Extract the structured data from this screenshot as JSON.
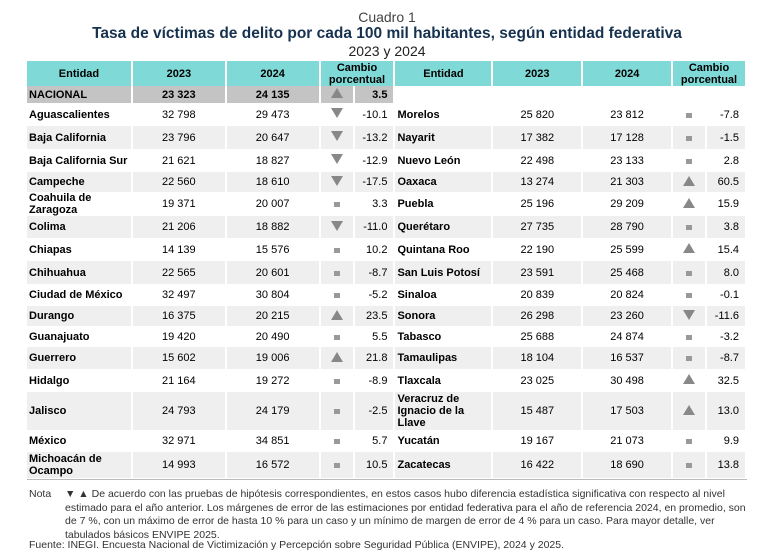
{
  "cuadro": "Cuadro 1",
  "title": "Tasa de víctimas de delito por cada 100 mil habitantes, según entidad federativa",
  "subtitle": "2023 y 2024",
  "headers": {
    "entidad": "Entidad",
    "y2023": "2023",
    "y2024": "2024",
    "cambio": "Cambio porcentual"
  },
  "nacional": {
    "name": "NACIONAL",
    "v2023": "23 323",
    "v2024": "24 135",
    "sym": "up",
    "change": "3.5"
  },
  "left": [
    {
      "name": "Aguascalientes",
      "v2023": "32 798",
      "v2024": "29 473",
      "sym": "down",
      "change": "-10.1"
    },
    {
      "name": "Baja California",
      "v2023": "23 796",
      "v2024": "20 647",
      "sym": "down",
      "change": "-13.2"
    },
    {
      "name": "Baja California Sur",
      "v2023": "21 621",
      "v2024": "18 827",
      "sym": "down",
      "change": "-12.9"
    },
    {
      "name": "Campeche",
      "v2023": "22 560",
      "v2024": "18 610",
      "sym": "down",
      "change": "-17.5"
    },
    {
      "name": "Coahuila de Zaragoza",
      "v2023": "19 371",
      "v2024": "20 007",
      "sym": "eq",
      "change": "3.3"
    },
    {
      "name": "Colima",
      "v2023": "21 206",
      "v2024": "18 882",
      "sym": "down",
      "change": "-11.0"
    },
    {
      "name": "Chiapas",
      "v2023": "14 139",
      "v2024": "15 576",
      "sym": "eq",
      "change": "10.2"
    },
    {
      "name": "Chihuahua",
      "v2023": "22 565",
      "v2024": "20 601",
      "sym": "eq",
      "change": "-8.7"
    },
    {
      "name": "Ciudad de México",
      "v2023": "32 497",
      "v2024": "30 804",
      "sym": "eq",
      "change": "-5.2"
    },
    {
      "name": "Durango",
      "v2023": "16 375",
      "v2024": "20 215",
      "sym": "up",
      "change": "23.5"
    },
    {
      "name": "Guanajuato",
      "v2023": "19 420",
      "v2024": "20 490",
      "sym": "eq",
      "change": "5.5"
    },
    {
      "name": "Guerrero",
      "v2023": "15 602",
      "v2024": "19 006",
      "sym": "up",
      "change": "21.8"
    },
    {
      "name": "Hidalgo",
      "v2023": "21 164",
      "v2024": "19 272",
      "sym": "eq",
      "change": "-8.9"
    },
    {
      "name": "Jalisco",
      "v2023": "24 793",
      "v2024": "24 179",
      "sym": "eq",
      "change": "-2.5"
    },
    {
      "name": "México",
      "v2023": "32 971",
      "v2024": "34 851",
      "sym": "eq",
      "change": "5.7"
    },
    {
      "name": "Michoacán de Ocampo",
      "v2023": "14 993",
      "v2024": "16 572",
      "sym": "eq",
      "change": "10.5"
    }
  ],
  "right": [
    {
      "name": "Morelos",
      "v2023": "25 820",
      "v2024": "23 812",
      "sym": "eq",
      "change": "-7.8"
    },
    {
      "name": "Nayarit",
      "v2023": "17 382",
      "v2024": "17 128",
      "sym": "eq",
      "change": "-1.5"
    },
    {
      "name": "Nuevo León",
      "v2023": "22 498",
      "v2024": "23 133",
      "sym": "eq",
      "change": "2.8"
    },
    {
      "name": "Oaxaca",
      "v2023": "13 274",
      "v2024": "21 303",
      "sym": "up",
      "change": "60.5"
    },
    {
      "name": "Puebla",
      "v2023": "25 196",
      "v2024": "29 209",
      "sym": "up",
      "change": "15.9"
    },
    {
      "name": "Querétaro",
      "v2023": "27 735",
      "v2024": "28 790",
      "sym": "eq",
      "change": "3.8"
    },
    {
      "name": "Quintana Roo",
      "v2023": "22 190",
      "v2024": "25 599",
      "sym": "up",
      "change": "15.4"
    },
    {
      "name": "San Luis Potosí",
      "v2023": "23 591",
      "v2024": "25 468",
      "sym": "eq",
      "change": "8.0"
    },
    {
      "name": "Sinaloa",
      "v2023": "20 839",
      "v2024": "20 824",
      "sym": "eq",
      "change": "-0.1"
    },
    {
      "name": "Sonora",
      "v2023": "26 298",
      "v2024": "23 260",
      "sym": "down",
      "change": "-11.6"
    },
    {
      "name": "Tabasco",
      "v2023": "25 688",
      "v2024": "24 874",
      "sym": "eq",
      "change": "-3.2"
    },
    {
      "name": "Tamaulipas",
      "v2023": "18 104",
      "v2024": "16 537",
      "sym": "eq",
      "change": "-8.7"
    },
    {
      "name": "Tlaxcala",
      "v2023": "23 025",
      "v2024": "30 498",
      "sym": "up",
      "change": "32.5"
    },
    {
      "name": "Veracruz de Ignacio de la Llave",
      "v2023": "15 487",
      "v2024": "17 503",
      "sym": "up",
      "change": "13.0"
    },
    {
      "name": "Yucatán",
      "v2023": "19 167",
      "v2024": "21 073",
      "sym": "eq",
      "change": "9.9"
    },
    {
      "name": "Zacatecas",
      "v2023": "16 422",
      "v2024": "18 690",
      "sym": "eq",
      "change": "13.8"
    }
  ],
  "note": {
    "label": "Nota",
    "text": "▼ ▲ De acuerdo con las pruebas de hipótesis correspondientes, en estos casos hubo diferencia estadística significativa con respecto al nivel estimado para el año anterior. Los márgenes de error de las estimaciones por entidad federativa para el año de referencia 2024, en promedio, son de 7 %, con un máximo de error de hasta 10 % para un caso y un mínimo de margen de error de 4 % para un caso. Para mayor detalle, ver tabulados básicos ENVIPE 2025."
  },
  "source": "Fuente: INEGI. Encuesta Nacional de Victimización y Percepción sobre Seguridad Pública (ENVIPE), 2024 y 2025."
}
